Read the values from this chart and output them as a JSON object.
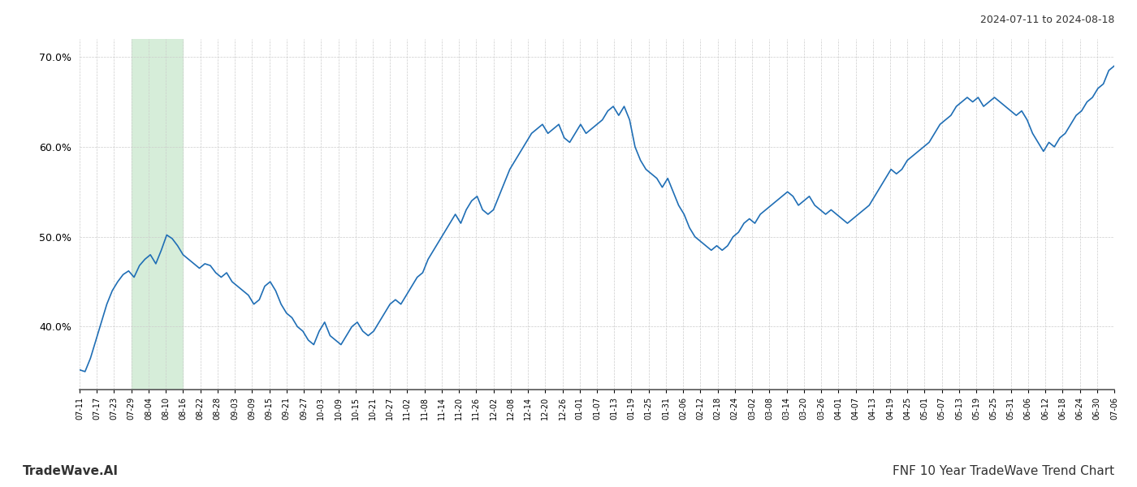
{
  "title_right": "2024-07-11 to 2024-08-18",
  "footer_left": "TradeWave.AI",
  "footer_right": "FNF 10 Year TradeWave Trend Chart",
  "line_color": "#1f6eb5",
  "line_width": 1.2,
  "background_color": "#ffffff",
  "grid_color": "#cccccc",
  "highlight_color": "#d6edd9",
  "ylim": [
    33,
    72
  ],
  "yticks": [
    40.0,
    50.0,
    60.0,
    70.0
  ],
  "highlight_start_label": "07-29",
  "highlight_end_label": "08-16",
  "x_labels": [
    "07-11",
    "07-17",
    "07-23",
    "07-29",
    "08-04",
    "08-10",
    "08-16",
    "08-22",
    "08-28",
    "09-03",
    "09-09",
    "09-15",
    "09-21",
    "09-27",
    "10-03",
    "10-09",
    "10-15",
    "10-21",
    "10-27",
    "11-02",
    "11-08",
    "11-14",
    "11-20",
    "11-26",
    "12-02",
    "12-08",
    "12-14",
    "12-20",
    "12-26",
    "01-01",
    "01-07",
    "01-13",
    "01-19",
    "01-25",
    "01-31",
    "02-06",
    "02-12",
    "02-18",
    "02-24",
    "03-02",
    "03-08",
    "03-14",
    "03-20",
    "03-26",
    "04-01",
    "04-07",
    "04-13",
    "04-19",
    "04-25",
    "05-01",
    "05-07",
    "05-13",
    "05-19",
    "05-25",
    "05-31",
    "06-06",
    "06-12",
    "06-18",
    "06-24",
    "06-30",
    "07-06"
  ],
  "values": [
    35.2,
    35.0,
    36.5,
    38.5,
    40.5,
    42.5,
    44.0,
    45.0,
    45.8,
    46.2,
    45.5,
    46.8,
    47.5,
    48.0,
    47.0,
    48.5,
    50.2,
    49.8,
    49.0,
    48.0,
    47.5,
    47.0,
    46.5,
    47.0,
    46.8,
    46.0,
    45.5,
    46.0,
    45.0,
    44.5,
    44.0,
    43.5,
    42.5,
    43.0,
    44.5,
    45.0,
    44.0,
    42.5,
    41.5,
    41.0,
    40.0,
    39.5,
    38.5,
    38.0,
    39.5,
    40.5,
    39.0,
    38.5,
    38.0,
    39.0,
    40.0,
    40.5,
    39.5,
    39.0,
    39.5,
    40.5,
    41.5,
    42.5,
    43.0,
    42.5,
    43.5,
    44.5,
    45.5,
    46.0,
    47.5,
    48.5,
    49.5,
    50.5,
    51.5,
    52.5,
    51.5,
    53.0,
    54.0,
    54.5,
    53.0,
    52.5,
    53.0,
    54.5,
    56.0,
    57.5,
    58.5,
    59.5,
    60.5,
    61.5,
    62.0,
    62.5,
    61.5,
    62.0,
    62.5,
    61.0,
    60.5,
    61.5,
    62.5,
    61.5,
    62.0,
    62.5,
    63.0,
    64.0,
    64.5,
    63.5,
    64.5,
    63.0,
    60.0,
    58.5,
    57.5,
    57.0,
    56.5,
    55.5,
    56.5,
    55.0,
    53.5,
    52.5,
    51.0,
    50.0,
    49.5,
    49.0,
    48.5,
    49.0,
    48.5,
    49.0,
    50.0,
    50.5,
    51.5,
    52.0,
    51.5,
    52.5,
    53.0,
    53.5,
    54.0,
    54.5,
    55.0,
    54.5,
    53.5,
    54.0,
    54.5,
    53.5,
    53.0,
    52.5,
    53.0,
    52.5,
    52.0,
    51.5,
    52.0,
    52.5,
    53.0,
    53.5,
    54.5,
    55.5,
    56.5,
    57.5,
    57.0,
    57.5,
    58.5,
    59.0,
    59.5,
    60.0,
    60.5,
    61.5,
    62.5,
    63.0,
    63.5,
    64.5,
    65.0,
    65.5,
    65.0,
    65.5,
    64.5,
    65.0,
    65.5,
    65.0,
    64.5,
    64.0,
    63.5,
    64.0,
    63.0,
    61.5,
    60.5,
    59.5,
    60.5,
    60.0,
    61.0,
    61.5,
    62.5,
    63.5,
    64.0,
    65.0,
    65.5,
    66.5,
    67.0,
    68.5,
    69.0
  ]
}
